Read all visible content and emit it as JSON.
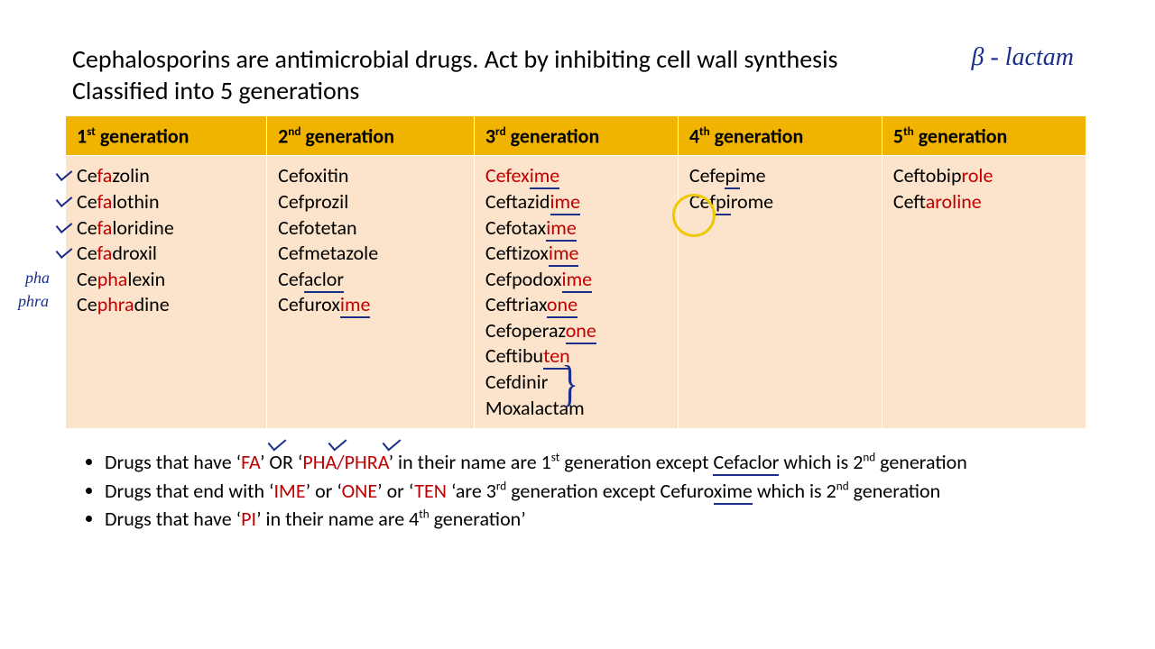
{
  "title_line1": "Cephalosporins are antimicrobial drugs. Act by inhibiting cell wall synthesis",
  "title_line2": "Classified into 5 generations",
  "handwriting": {
    "beta": "β - lactam",
    "pha": "pha",
    "phra": "phra"
  },
  "headers": [
    {
      "num": "1",
      "suffix": "st",
      "label": " generation"
    },
    {
      "num": "2",
      "suffix": "nd",
      "label": " generation"
    },
    {
      "num": "3",
      "suffix": "rd",
      "label": " generation"
    },
    {
      "num": "4",
      "suffix": "th",
      "label": " generation"
    },
    {
      "num": "5",
      "suffix": "th",
      "label": " generation"
    }
  ],
  "gens": {
    "g1": [
      {
        "parts": [
          {
            "t": "Ce"
          },
          {
            "t": "fa",
            "hl": true
          },
          {
            "t": "zolin"
          }
        ],
        "check": true
      },
      {
        "parts": [
          {
            "t": "Ce"
          },
          {
            "t": "fa",
            "hl": true
          },
          {
            "t": "lothin"
          }
        ],
        "check": true
      },
      {
        "parts": [
          {
            "t": "Ce"
          },
          {
            "t": "fa",
            "hl": true
          },
          {
            "t": "loridine"
          }
        ],
        "check": true
      },
      {
        "parts": [
          {
            "t": "Ce"
          },
          {
            "t": "fa",
            "hl": true
          },
          {
            "t": "droxil"
          }
        ],
        "check": true
      },
      {
        "parts": [
          {
            "t": "Ce"
          },
          {
            "t": "pha",
            "hl": true
          },
          {
            "t": "lexin"
          }
        ]
      },
      {
        "parts": [
          {
            "t": "Ce"
          },
          {
            "t": "phra",
            "hl": true
          },
          {
            "t": "dine"
          }
        ]
      }
    ],
    "g2": [
      {
        "parts": [
          {
            "t": "Cefoxitin"
          }
        ]
      },
      {
        "parts": [
          {
            "t": "Cefprozil"
          }
        ]
      },
      {
        "parts": [
          {
            "t": "Cefotetan"
          }
        ]
      },
      {
        "parts": [
          {
            "t": "Cefmetazole"
          }
        ]
      },
      {
        "parts": [
          {
            "t": "Cef"
          },
          {
            "t": "aclor",
            "u": true
          }
        ]
      },
      {
        "parts": [
          {
            "t": "Cefurox"
          },
          {
            "t": "ime",
            "hl": true,
            "u": true
          }
        ]
      }
    ],
    "g3": [
      {
        "parts": [
          {
            "t": "Cefex",
            "hl": true
          },
          {
            "t": "ime",
            "hl": true,
            "u": true
          }
        ]
      },
      {
        "parts": [
          {
            "t": "Ceftazid"
          },
          {
            "t": "ime",
            "hl": true,
            "u": true
          }
        ]
      },
      {
        "parts": [
          {
            "t": "Cefotax"
          },
          {
            "t": "ime",
            "hl": true,
            "u": true
          }
        ]
      },
      {
        "parts": [
          {
            "t": "Ceftizox"
          },
          {
            "t": "ime",
            "hl": true,
            "u": true
          }
        ]
      },
      {
        "parts": [
          {
            "t": "Cefpodox"
          },
          {
            "t": "ime",
            "hl": true,
            "u": true
          }
        ]
      },
      {
        "parts": [
          {
            "t": "Ceftriax"
          },
          {
            "t": "one",
            "hl": true,
            "u": true
          }
        ]
      },
      {
        "parts": [
          {
            "t": "Cefoperaz"
          },
          {
            "t": "one",
            "hl": true,
            "u": true
          }
        ]
      },
      {
        "parts": [
          {
            "t": "Ceftibu"
          },
          {
            "t": "ten",
            "hl": true,
            "u": true
          }
        ]
      },
      {
        "parts": [
          {
            "t": "Cefdinir"
          }
        ]
      },
      {
        "parts": [
          {
            "t": "Moxalactam"
          }
        ]
      }
    ],
    "g4": [
      {
        "parts": [
          {
            "t": "Cefe"
          },
          {
            "t": "pi",
            "u": true
          },
          {
            "t": "me"
          }
        ]
      },
      {
        "parts": [
          {
            "t": "Cef"
          },
          {
            "t": "pi",
            "u": true
          },
          {
            "t": "rome"
          }
        ]
      }
    ],
    "g5": [
      {
        "parts": [
          {
            "t": "Ceftobip"
          },
          {
            "t": "role",
            "hl": true
          }
        ]
      },
      {
        "parts": [
          {
            "t": "Ceft"
          },
          {
            "t": "aroline",
            "hl": true
          }
        ]
      }
    ]
  },
  "notes": {
    "n1": {
      "a": "Drugs that have ‘",
      "fa": "FA",
      "b": "’ OR ‘",
      "pha": "PHA/PHRA",
      "c": "’ in their name are  1",
      "sup1": "st",
      "d": " generation except ",
      "cef": "Cefaclor",
      "e": " which is 2",
      "sup2": "nd",
      "f": " generation"
    },
    "n2": {
      "a": "Drugs that end with ‘",
      "ime": "IME",
      "b": "’ or ‘",
      "one": "ONE",
      "c": "’ or ‘",
      "ten": "TEN",
      "d": " ‘are 3",
      "sup1": "rd",
      "e": " generation except Cefuro",
      "xime": "xime",
      "f": " which is 2",
      "sup2": "nd",
      "g": " generation"
    },
    "n3": {
      "a": "Drugs that have ‘",
      "pi": "PI",
      "b": "’ in their name are 4",
      "sup1": "th",
      "c": " generation’"
    }
  },
  "colors": {
    "header_bg": "#f0b400",
    "cell_bg": "#fbe4cb",
    "highlight": "#c00000",
    "ink": "#1a2e8a",
    "circle": "#f0c800"
  }
}
